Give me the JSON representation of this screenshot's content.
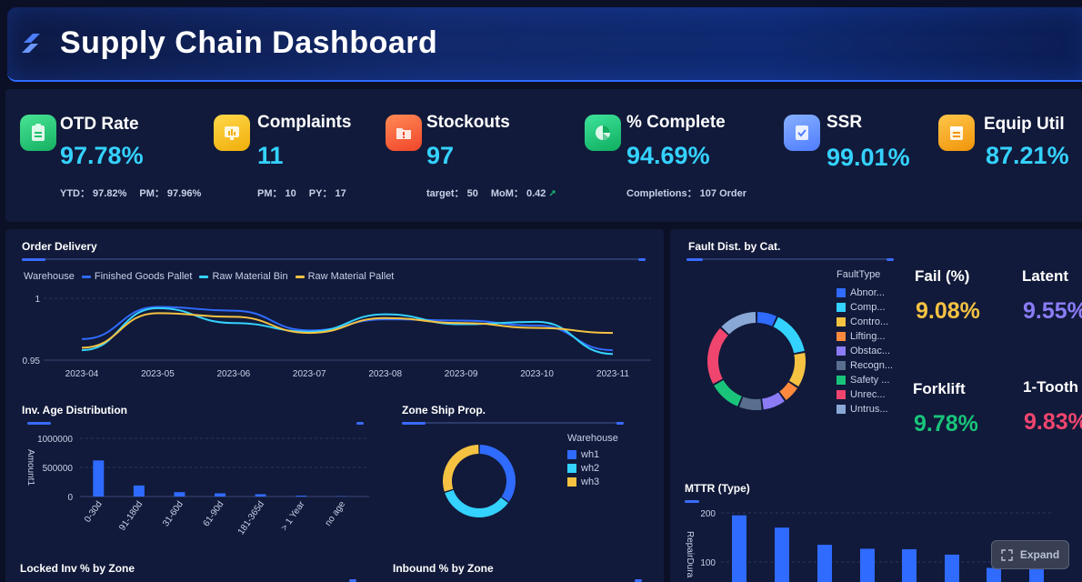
{
  "header": {
    "title": "Supply Chain Dashboard",
    "logo_icon": "layers-logo-icon"
  },
  "kpis": [
    {
      "name": "OTD Rate",
      "value": "97.78%",
      "icon": "clipboard-icon",
      "color": "#2ed37a",
      "subs": [
        "YTD： 97.82%",
        "PM： 97.96%"
      ]
    },
    {
      "name": "Complaints",
      "value": "11",
      "icon": "chart-board-icon",
      "color": "#f5c21b",
      "subs": [
        "PM： 10",
        "PY： 17"
      ]
    },
    {
      "name": "Stockouts",
      "value": "97",
      "icon": "folder-alert-icon",
      "color": "#ff6a3d",
      "subs": [
        "target： 50",
        "MoM： 0.42"
      ]
    },
    {
      "name": "% Complete",
      "value": "94.69%",
      "icon": "pie-icon",
      "color": "#19c47a",
      "subs": [
        "Completions： 107  Order"
      ]
    },
    {
      "name": "SSR",
      "value": "99.01%",
      "icon": "checklist-icon",
      "color": "#5b8dff",
      "subs": []
    },
    {
      "name": "Equip Util",
      "value": "87.21%",
      "icon": "calendar-icon",
      "color": "#f5a623",
      "subs": []
    }
  ],
  "order_delivery": {
    "title": "Order Delivery",
    "chart_data": {
      "type": "line",
      "legend_title": "Warehouse",
      "x": [
        "2023-04",
        "2023-05",
        "2023-06",
        "2023-07",
        "2023-08",
        "2023-09",
        "2023-10",
        "2023-11"
      ],
      "y_ticks": [
        "1",
        "0.95"
      ],
      "ylim": [
        0.95,
        1.0
      ],
      "series": [
        {
          "name": "Finished Goods Pallet",
          "color": "#2f6bff",
          "values": [
            0.967,
            0.993,
            0.99,
            0.974,
            0.983,
            0.982,
            0.978,
            0.958
          ]
        },
        {
          "name": "Raw Material Bin",
          "color": "#34d2ff",
          "values": [
            0.958,
            0.992,
            0.98,
            0.973,
            0.987,
            0.979,
            0.981,
            0.955
          ]
        },
        {
          "name": "Raw Material Pallet",
          "color": "#f5c242",
          "values": [
            0.96,
            0.988,
            0.985,
            0.972,
            0.984,
            0.98,
            0.976,
            0.972
          ]
        }
      ]
    }
  },
  "inv_age": {
    "title": "Inv. Age Distribution",
    "chart_data": {
      "type": "bar",
      "ylabel": "Amount1",
      "y_ticks": [
        "1000000",
        "500000",
        "0"
      ],
      "ylim": [
        0,
        1000000
      ],
      "categories": [
        "0-30d",
        "91-180d",
        "31-60d",
        "61-90d",
        "181-365d",
        "> 1 Year",
        "no age"
      ],
      "values": [
        620000,
        190000,
        75000,
        55000,
        40000,
        15000,
        5000
      ],
      "color": "#2f6bff"
    }
  },
  "zone_ship": {
    "title": "Zone Ship Prop.",
    "chart_data": {
      "type": "pie",
      "legend_title": "Warehouse",
      "categories": [
        "wh1",
        "wh2",
        "wh3"
      ],
      "values": [
        35,
        35,
        30
      ],
      "colors": [
        "#2f6bff",
        "#34d2ff",
        "#f5c242"
      ]
    }
  },
  "fault_dist": {
    "title": "Fault Dist. by Cat.",
    "chart_data": {
      "type": "pie",
      "legend_title": "FaultType",
      "categories": [
        "Abnor...",
        "Comp...",
        "Contro...",
        "Lifting...",
        "Obstac...",
        "Recogn...",
        "Safety ...",
        "Unrec...",
        "Untrus..."
      ],
      "values": [
        7,
        15,
        12,
        6,
        8,
        8,
        11,
        20,
        13
      ],
      "colors": [
        "#2f6bff",
        "#34d2ff",
        "#f5c242",
        "#ff8a3d",
        "#8b7cf6",
        "#5a6f8f",
        "#19c47a",
        "#f0456e",
        "#8aa8d6"
      ]
    }
  },
  "fault_metrics": [
    {
      "name": "Fail (%)",
      "value": "9.08%",
      "color": "#f5c242"
    },
    {
      "name": "Latent",
      "value": "9.55%",
      "color": "#8b7cf6"
    },
    {
      "name": "Forklift",
      "value": "9.78%",
      "color": "#19c47a"
    },
    {
      "name": "1-Tooth",
      "value": "9.83%",
      "color": "#f0456e"
    }
  ],
  "mttr": {
    "title": "MTTR (Type)",
    "chart_data": {
      "type": "bar",
      "ylabel": "RepairDura",
      "y_ticks": [
        "200",
        "100"
      ],
      "ylim": [
        0,
        200
      ],
      "values": [
        195,
        170,
        135,
        127,
        126,
        115,
        88,
        85
      ],
      "color": "#2f6bff"
    }
  },
  "locked_inv": {
    "title": "Locked Inv % by Zone"
  },
  "inbound": {
    "title": "Inbound % by Zone"
  },
  "expand": {
    "label": "Expand",
    "icon": "expand-icon"
  }
}
